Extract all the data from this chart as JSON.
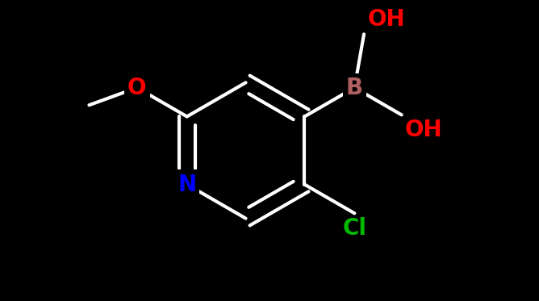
{
  "background_color": "#000000",
  "bond_color": "#ffffff",
  "bond_width": 3.0,
  "figsize": [
    6.68,
    3.73
  ],
  "dpi": 100,
  "colors": {
    "N": "#0000ff",
    "O": "#ff0000",
    "B": "#b06060",
    "Cl": "#00bb00",
    "OH": "#ff0000",
    "C": "#ffffff"
  },
  "font_size_atom": 20,
  "font_size_oh": 20
}
